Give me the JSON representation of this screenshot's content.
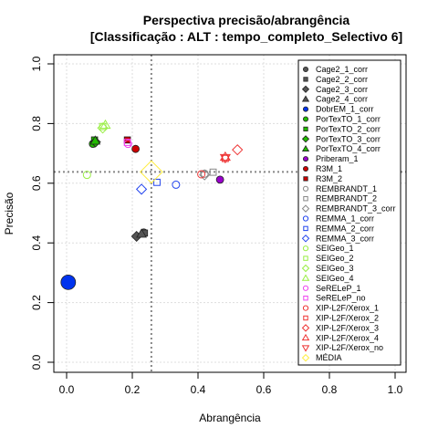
{
  "chart_data": {
    "type": "scatter",
    "title": "Perspectiva precisão/abrangência",
    "subtitle": "[Classificação : ALT : tempo_completo_Selectivo 6]",
    "xlabel": "Abrangência",
    "ylabel": "Precisão",
    "xlim": [
      0,
      1
    ],
    "ylim": [
      0,
      1
    ],
    "xticks": [
      "0.0",
      "0.2",
      "0.4",
      "0.6",
      "0.8",
      "1.0"
    ],
    "yticks": [
      "0.0",
      "0.2",
      "0.4",
      "0.6",
      "0.8",
      "1.0"
    ],
    "grid": true,
    "legend_position": "top-right",
    "reference_lines": {
      "x": 0.258,
      "y": 0.638
    },
    "series": [
      {
        "name": "Cage2_1_corr",
        "color": "#555555",
        "marker": "circle-filled",
        "x": 0.235,
        "y": 0.435
      },
      {
        "name": "Cage2_2_corr",
        "color": "#555555",
        "marker": "square-filled",
        "x": 0.237,
        "y": 0.433
      },
      {
        "name": "Cage2_3_corr",
        "color": "#555555",
        "marker": "diamond-filled",
        "x": 0.213,
        "y": 0.422
      },
      {
        "name": "Cage2_4_corr",
        "color": "#555555",
        "marker": "triangle-filled",
        "x": 0.228,
        "y": 0.43
      },
      {
        "name": "DobrEM_1_corr",
        "color": "#0033ee",
        "marker": "circle-filled",
        "x": 0.005,
        "y": 0.268,
        "large": true
      },
      {
        "name": "PorTexTO_1_corr",
        "color": "#22bb00",
        "marker": "circle-filled",
        "x": 0.08,
        "y": 0.732
      },
      {
        "name": "PorTexTO_2_corr",
        "color": "#22bb00",
        "marker": "square-filled",
        "x": 0.085,
        "y": 0.745
      },
      {
        "name": "PorTexTO_3_corr",
        "color": "#22bb00",
        "marker": "diamond-filled",
        "x": 0.088,
        "y": 0.738
      },
      {
        "name": "PorTexTO_4_corr",
        "color": "#22bb00",
        "marker": "triangle-filled",
        "x": 0.087,
        "y": 0.742
      },
      {
        "name": "Priberam_1",
        "color": "#9900cc",
        "marker": "circle-filled",
        "x": 0.467,
        "y": 0.612
      },
      {
        "name": "R3M_1",
        "color": "#cc0000",
        "marker": "circle-filled",
        "x": 0.21,
        "y": 0.715
      },
      {
        "name": "R3M_2",
        "color": "#cc0000",
        "marker": "square-filled",
        "x": 0.185,
        "y": 0.745
      },
      {
        "name": "REMBRANDT_1",
        "color": "#888888",
        "marker": "circle-open",
        "x": 0.42,
        "y": 0.632
      },
      {
        "name": "REMBRANDT_2",
        "color": "#888888",
        "marker": "square-open",
        "x": 0.446,
        "y": 0.637
      },
      {
        "name": "REMBRANDT_3_corr",
        "color": "#888888",
        "marker": "diamond-open",
        "x": 0.42,
        "y": 0.628
      },
      {
        "name": "REMMA_1_corr",
        "color": "#2244ee",
        "marker": "circle-open",
        "x": 0.333,
        "y": 0.595
      },
      {
        "name": "REMMA_2_corr",
        "color": "#2244ee",
        "marker": "square-open",
        "x": 0.275,
        "y": 0.603
      },
      {
        "name": "REMMA_3_corr",
        "color": "#2244ee",
        "marker": "diamond-open",
        "x": 0.228,
        "y": 0.58
      },
      {
        "name": "SEIGeo_1",
        "color": "#99ee44",
        "marker": "circle-open",
        "x": 0.062,
        "y": 0.628
      },
      {
        "name": "SEIGeo_2",
        "color": "#99ee44",
        "marker": "square-open",
        "x": 0.11,
        "y": 0.79
      },
      {
        "name": "SEIGeo_3",
        "color": "#99ee44",
        "marker": "diamond-open",
        "x": 0.11,
        "y": 0.785
      },
      {
        "name": "SEIGeo_4",
        "color": "#99ee44",
        "marker": "triangle-open",
        "x": 0.118,
        "y": 0.795
      },
      {
        "name": "SeRELeP_1",
        "color": "#ee44ee",
        "marker": "circle-open",
        "x": 0.187,
        "y": 0.732
      },
      {
        "name": "SeRELeP_no",
        "color": "#ee44ee",
        "marker": "square-open",
        "x": 0.185,
        "y": 0.737
      },
      {
        "name": "XIP-L2F/Xerox_1",
        "color": "#ee3333",
        "marker": "circle-open",
        "x": 0.41,
        "y": 0.63
      },
      {
        "name": "XIP-L2F/Xerox_2",
        "color": "#ee3333",
        "marker": "square-open",
        "x": 0.483,
        "y": 0.683
      },
      {
        "name": "XIP-L2F/Xerox_3",
        "color": "#ee3333",
        "marker": "diamond-open",
        "x": 0.52,
        "y": 0.712
      },
      {
        "name": "XIP-L2F/Xerox_4",
        "color": "#ee3333",
        "marker": "triangle-open",
        "x": 0.483,
        "y": 0.688
      },
      {
        "name": "XIP-L2F/Xerox_no",
        "color": "#ee3333",
        "marker": "triangle-down-open",
        "x": 0.483,
        "y": 0.685
      },
      {
        "name": "MÉDIA",
        "color": "#ffee44",
        "marker": "diamond-open",
        "x": 0.258,
        "y": 0.638,
        "large": true
      }
    ]
  }
}
